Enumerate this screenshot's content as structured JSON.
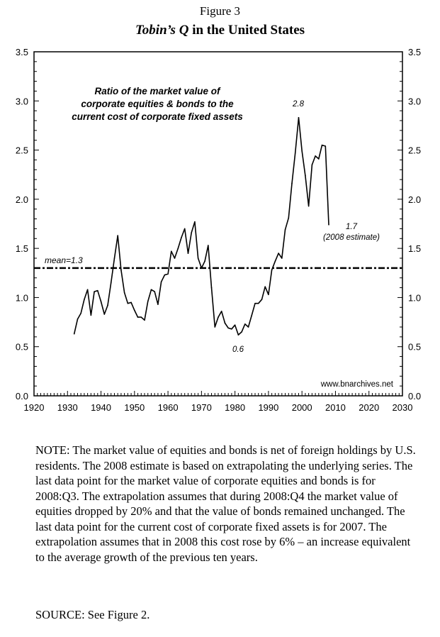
{
  "figure_label": "Figure 3",
  "title_italic": "Tobin’s Q",
  "title_rest": " in the United States",
  "note": "NOTE: The market value of equities and bonds is net of foreign holdings by U.S. residents. The 2008 estimate is based on extrapolating the underlying series. The last data point for the market value of corporate equities and bonds is for 2008:Q3. The extrapolation assumes that during 2008:Q4 the market value of equities dropped by 20% and that the value of bonds remained unchanged. The last data point for the current cost of corporate fixed assets is for 2007. The extrapolation assumes that in 2008 this cost rose by 6% – an increase equivalent to the average growth of the previous ten years.",
  "source": "SOURCE: See Figure 2.",
  "chart_data": {
    "type": "line",
    "title": "Tobin’s Q in the United States",
    "subtitle_lines": [
      "Ratio of the market value of",
      "corporate equities & bonds to the",
      "current cost of corporate fixed assets"
    ],
    "xlim": [
      1920,
      2030
    ],
    "ylim": [
      0,
      3.5
    ],
    "x_ticks": [
      "1920",
      "1930",
      "1940",
      "1950",
      "1960",
      "1970",
      "1980",
      "1990",
      "2000",
      "2010",
      "2020",
      "2030"
    ],
    "y_ticks": [
      "0.0",
      "0.5",
      "1.0",
      "1.5",
      "2.0",
      "2.5",
      "3.0",
      "3.5"
    ],
    "grid": false,
    "mean": {
      "value": 1.3,
      "label": "mean=1.3"
    },
    "annotations": [
      {
        "text": "2.8",
        "x": 1999,
        "y": 2.83
      },
      {
        "text": "0.6",
        "x": 1981,
        "y": 0.62
      },
      {
        "text": "1.7",
        "x": 2008,
        "y": 1.74
      },
      {
        "text": "(2008 estimate)",
        "x": 2008,
        "y": 1.74
      }
    ],
    "watermark": "www.bnarchives.net",
    "line_color": "#000000",
    "x": [
      1932,
      1933,
      1934,
      1935,
      1936,
      1937,
      1938,
      1939,
      1940,
      1941,
      1942,
      1943,
      1944,
      1945,
      1946,
      1947,
      1948,
      1949,
      1950,
      1951,
      1952,
      1953,
      1954,
      1955,
      1956,
      1957,
      1958,
      1959,
      1960,
      1961,
      1962,
      1963,
      1964,
      1965,
      1966,
      1967,
      1968,
      1969,
      1970,
      1971,
      1972,
      1973,
      1974,
      1975,
      1976,
      1977,
      1978,
      1979,
      1980,
      1981,
      1982,
      1983,
      1984,
      1985,
      1986,
      1987,
      1988,
      1989,
      1990,
      1991,
      1992,
      1993,
      1994,
      1995,
      1996,
      1997,
      1998,
      1999,
      2000,
      2001,
      2002,
      2003,
      2004,
      2005,
      2006,
      2007,
      2008
    ],
    "values": [
      0.63,
      0.78,
      0.84,
      0.98,
      1.08,
      0.82,
      1.06,
      1.07,
      0.96,
      0.83,
      0.92,
      1.15,
      1.4,
      1.63,
      1.28,
      1.05,
      0.94,
      0.95,
      0.87,
      0.8,
      0.8,
      0.77,
      0.96,
      1.08,
      1.06,
      0.93,
      1.16,
      1.23,
      1.24,
      1.47,
      1.4,
      1.5,
      1.61,
      1.7,
      1.45,
      1.66,
      1.77,
      1.4,
      1.3,
      1.37,
      1.53,
      1.1,
      0.7,
      0.8,
      0.86,
      0.74,
      0.69,
      0.68,
      0.72,
      0.62,
      0.65,
      0.73,
      0.7,
      0.82,
      0.94,
      0.94,
      0.98,
      1.11,
      1.03,
      1.28,
      1.37,
      1.45,
      1.4,
      1.69,
      1.81,
      2.16,
      2.47,
      2.83,
      2.49,
      2.24,
      1.93,
      2.35,
      2.44,
      2.41,
      2.55,
      2.54,
      1.74
    ]
  }
}
